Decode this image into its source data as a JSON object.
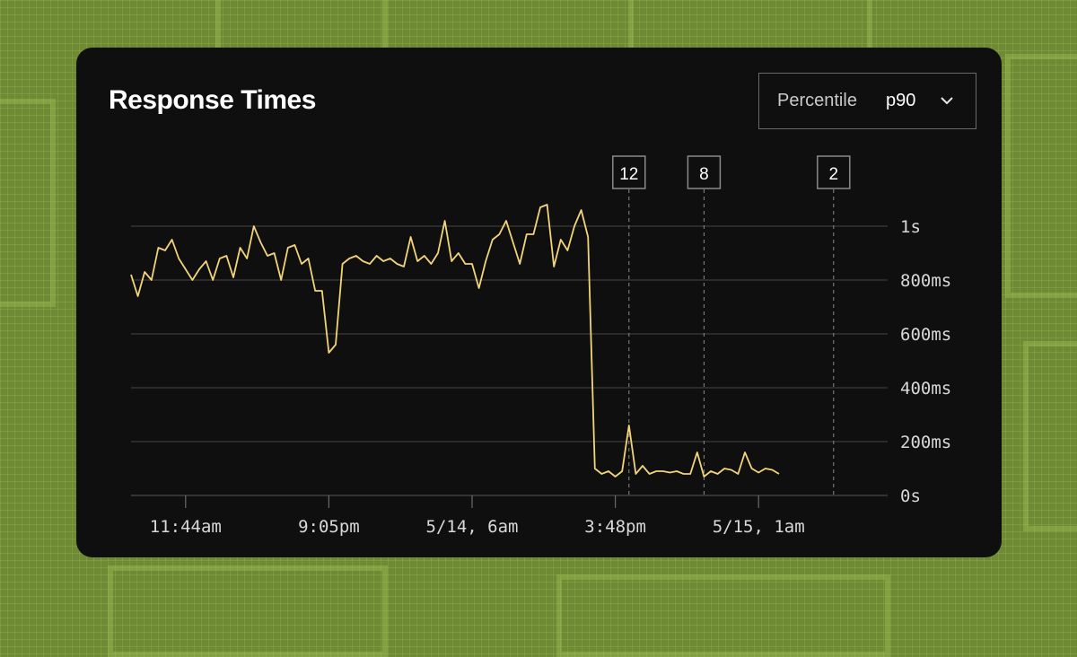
{
  "card": {
    "title": "Response Times"
  },
  "percentile_select": {
    "label": "Percentile",
    "value": "p90",
    "icon": "chevron-down-icon"
  },
  "colors": {
    "background": "#6f8a34",
    "card": "#0f0f0f",
    "line": "#f2d479",
    "grid": "#3c3c3c",
    "text": "#ffffff"
  },
  "chart_data": {
    "type": "line",
    "title": "Response Times",
    "ylim": [
      0,
      1000
    ],
    "y_unit": "ms",
    "y_ticks": [
      {
        "value": 0,
        "label": "0s"
      },
      {
        "value": 200,
        "label": "200ms"
      },
      {
        "value": 400,
        "label": "400ms"
      },
      {
        "value": 600,
        "label": "600ms"
      },
      {
        "value": 800,
        "label": "800ms"
      },
      {
        "value": 1000,
        "label": "1s"
      }
    ],
    "x_ticks": [
      {
        "index": 8,
        "label": "11:44am"
      },
      {
        "index": 29,
        "label": "9:05pm"
      },
      {
        "index": 50,
        "label": "5/14, 6am"
      },
      {
        "index": 71,
        "label": "3:48pm"
      },
      {
        "index": 92,
        "label": "5/15, 1am"
      }
    ],
    "grid": true,
    "series": [
      {
        "values": [
          820,
          740,
          830,
          800,
          920,
          910,
          950,
          880,
          840,
          800,
          840,
          870,
          800,
          880,
          890,
          810,
          920,
          880,
          1000,
          940,
          890,
          900,
          800,
          920,
          930,
          860,
          880,
          760,
          760,
          530,
          560,
          860,
          880,
          890,
          870,
          860,
          890,
          870,
          880,
          860,
          850,
          960,
          870,
          890,
          860,
          900,
          1020,
          870,
          900,
          860,
          860,
          770,
          870,
          950,
          970,
          1020,
          940,
          860,
          970,
          970,
          1070,
          1080,
          850,
          950,
          910,
          1000,
          1060,
          960,
          100,
          80,
          90,
          70,
          90,
          260,
          80,
          110,
          80,
          90,
          90,
          85,
          90,
          80,
          80,
          160,
          70,
          90,
          80,
          100,
          95,
          80,
          160,
          100,
          85,
          100,
          95,
          80
        ]
      }
    ],
    "annotations": [
      {
        "index": 73,
        "label": "12"
      },
      {
        "index": 84,
        "label": "8"
      },
      {
        "index": 103,
        "label": "2"
      }
    ]
  }
}
